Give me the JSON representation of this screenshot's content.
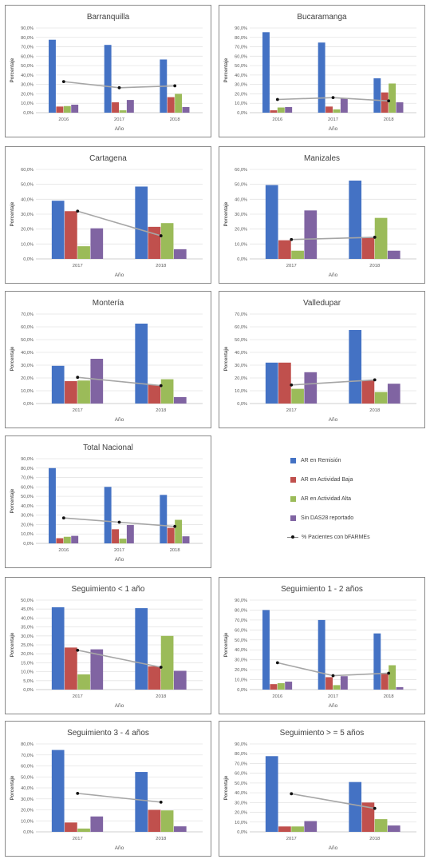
{
  "colors": {
    "remision": "#4472c4",
    "baja": "#c0504d",
    "alta": "#9bbb59",
    "sin": "#8064a2",
    "line": "#a6a6a6",
    "marker": "#111111"
  },
  "legend": {
    "items": [
      {
        "label": "AR en Remisión",
        "key": "remision",
        "type": "bar"
      },
      {
        "label": "AR en Actividad Baja",
        "key": "baja",
        "type": "bar"
      },
      {
        "label": "AR en Actividad Alta",
        "key": "alta",
        "type": "bar"
      },
      {
        "label": "Sin DAS28 reportado",
        "key": "sin",
        "type": "bar"
      },
      {
        "label": "% Pacientes con bFARMEs",
        "key": "line",
        "type": "line"
      }
    ]
  },
  "chart_data": [
    {
      "type": "bar",
      "title": "Barranquilla",
      "xlabel": "Año",
      "ylabel": "Porcentaje",
      "ylim": [
        0,
        90
      ],
      "yticks": [
        "0,0%",
        "10,0%",
        "20,0%",
        "30,0%",
        "40,0%",
        "50,0%",
        "60,0%",
        "70,0%",
        "80,0%",
        "90,0%"
      ],
      "categories": [
        "2016",
        "2017",
        "2018"
      ],
      "series": [
        {
          "name": "AR en Remisión",
          "key": "remision",
          "values": [
            77.5,
            72.0,
            56.5
          ]
        },
        {
          "name": "AR en Actividad Baja",
          "key": "baja",
          "values": [
            6.5,
            11.0,
            16.5
          ]
        },
        {
          "name": "AR en Actividad Alta",
          "key": "alta",
          "values": [
            7.0,
            2.5,
            20.0
          ]
        },
        {
          "name": "Sin DAS28 reportado",
          "key": "sin",
          "values": [
            8.5,
            13.5,
            6.0
          ]
        }
      ],
      "line": {
        "name": "% Pacientes con bFARMEs",
        "values": [
          33.0,
          26.5,
          28.5
        ]
      }
    },
    {
      "type": "bar",
      "title": "Bucaramanga",
      "xlabel": "Año",
      "ylabel": "Porcentaje",
      "ylim": [
        0,
        90
      ],
      "yticks": [
        "0,0%",
        "10,0%",
        "20,0%",
        "30,0%",
        "40,0%",
        "50,0%",
        "60,0%",
        "70,0%",
        "80,0%",
        "90,0%"
      ],
      "categories": [
        "2016",
        "2017",
        "2018"
      ],
      "series": [
        {
          "name": "AR en Remisión",
          "key": "remision",
          "values": [
            85.5,
            74.5,
            36.5
          ]
        },
        {
          "name": "AR en Actividad Baja",
          "key": "baja",
          "values": [
            2.5,
            6.5,
            21.5
          ]
        },
        {
          "name": "AR en Actividad Alta",
          "key": "alta",
          "values": [
            5.5,
            3.5,
            31.0
          ]
        },
        {
          "name": "Sin DAS28 reportado",
          "key": "sin",
          "values": [
            6.0,
            15.5,
            11.0
          ]
        }
      ],
      "line": {
        "name": "% Pacientes con bFARMEs",
        "values": [
          14.0,
          16.0,
          12.5
        ]
      }
    },
    {
      "type": "bar",
      "title": "Cartagena",
      "xlabel": "Año",
      "ylabel": "Porcentaje",
      "ylim": [
        0,
        60
      ],
      "yticks": [
        "0,0%",
        "10,0%",
        "20,0%",
        "30,0%",
        "40,0%",
        "50,0%",
        "60,0%"
      ],
      "categories": [
        "2017",
        "2018"
      ],
      "series": [
        {
          "name": "AR en Remisión",
          "key": "remision",
          "values": [
            39.0,
            48.5
          ]
        },
        {
          "name": "AR en Actividad Baja",
          "key": "baja",
          "values": [
            32.0,
            21.5
          ]
        },
        {
          "name": "AR en Actividad Alta",
          "key": "alta",
          "values": [
            8.5,
            24.0
          ]
        },
        {
          "name": "Sin DAS28 reportado",
          "key": "sin",
          "values": [
            20.5,
            6.5
          ]
        }
      ],
      "line": {
        "name": "% Pacientes con bFARMEs",
        "values": [
          32.0,
          15.5
        ]
      }
    },
    {
      "type": "bar",
      "title": "Manizales",
      "xlabel": "Año",
      "ylabel": "Porcentaje",
      "ylim": [
        0,
        60
      ],
      "yticks": [
        "0,0%",
        "10,0%",
        "20,0%",
        "30,0%",
        "40,0%",
        "50,0%",
        "60,0%"
      ],
      "categories": [
        "2017",
        "2018"
      ],
      "series": [
        {
          "name": "AR en Remisión",
          "key": "remision",
          "values": [
            49.5,
            52.5
          ]
        },
        {
          "name": "AR en Actividad Baja",
          "key": "baja",
          "values": [
            12.5,
            14.5
          ]
        },
        {
          "name": "AR en Actividad Alta",
          "key": "alta",
          "values": [
            5.5,
            27.5
          ]
        },
        {
          "name": "Sin DAS28 reportado",
          "key": "sin",
          "values": [
            32.5,
            5.5
          ]
        }
      ],
      "line": {
        "name": "% Pacientes con bFARMEs",
        "values": [
          13.0,
          14.5
        ]
      }
    },
    {
      "type": "bar",
      "title": "Montería",
      "xlabel": "Año",
      "ylabel": "Porcentaje",
      "ylim": [
        0,
        70
      ],
      "yticks": [
        "0,0%",
        "10,0%",
        "20,0%",
        "30,0%",
        "40,0%",
        "50,0%",
        "60,0%",
        "70,0%"
      ],
      "categories": [
        "2017",
        "2018"
      ],
      "series": [
        {
          "name": "AR en Remisión",
          "key": "remision",
          "values": [
            29.5,
            62.5
          ]
        },
        {
          "name": "AR en Actividad Baja",
          "key": "baja",
          "values": [
            17.5,
            14.5
          ]
        },
        {
          "name": "AR en Actividad Alta",
          "key": "alta",
          "values": [
            18.0,
            19.0
          ]
        },
        {
          "name": "Sin DAS28 reportado",
          "key": "sin",
          "values": [
            35.0,
            5.0
          ]
        }
      ],
      "line": {
        "name": "% Pacientes con bFARMEs",
        "values": [
          20.5,
          14.0
        ]
      }
    },
    {
      "type": "bar",
      "title": "Valledupar",
      "xlabel": "Año",
      "ylabel": "Porcentaje",
      "ylim": [
        0,
        70
      ],
      "yticks": [
        "0,0%",
        "10,0%",
        "20,0%",
        "30,0%",
        "40,0%",
        "50,0%",
        "60,0%",
        "70,0%"
      ],
      "categories": [
        "2017",
        "2018"
      ],
      "series": [
        {
          "name": "AR en Remisión",
          "key": "remision",
          "values": [
            32.0,
            57.5
          ]
        },
        {
          "name": "AR en Actividad Baja",
          "key": "baja",
          "values": [
            32.0,
            18.0
          ]
        },
        {
          "name": "AR en Actividad Alta",
          "key": "alta",
          "values": [
            11.5,
            9.0
          ]
        },
        {
          "name": "Sin DAS28 reportado",
          "key": "sin",
          "values": [
            24.5,
            15.5
          ]
        }
      ],
      "line": {
        "name": "% Pacientes con bFARMEs",
        "values": [
          14.5,
          18.5
        ]
      }
    },
    {
      "type": "bar",
      "title": "Total Nacional",
      "xlabel": "Año",
      "ylabel": "Porcentaje",
      "ylim": [
        0,
        90
      ],
      "yticks": [
        "0,0%",
        "10,0%",
        "20,0%",
        "30,0%",
        "40,0%",
        "50,0%",
        "60,0%",
        "70,0%",
        "80,0%",
        "90,0%"
      ],
      "categories": [
        "2016",
        "2017",
        "2018"
      ],
      "series": [
        {
          "name": "AR en Remisión",
          "key": "remision",
          "values": [
            80.0,
            60.0,
            51.5
          ]
        },
        {
          "name": "AR en Actividad Baja",
          "key": "baja",
          "values": [
            5.5,
            15.0,
            16.5
          ]
        },
        {
          "name": "AR en Actividad Alta",
          "key": "alta",
          "values": [
            7.0,
            5.0,
            25.0
          ]
        },
        {
          "name": "Sin DAS28 reportado",
          "key": "sin",
          "values": [
            8.0,
            19.5,
            7.5
          ]
        }
      ],
      "line": {
        "name": "% Pacientes con bFARMEs",
        "values": [
          27.0,
          22.5,
          18.0
        ]
      }
    },
    {
      "type": "bar",
      "title": "Seguimiento < 1 año",
      "xlabel": "Año",
      "ylabel": "Porcentaje",
      "ylim": [
        0,
        50
      ],
      "yticks": [
        "0,0%",
        "5,0%",
        "10,0%",
        "15,0%",
        "20,0%",
        "25,0%",
        "30,0%",
        "35,0%",
        "40,0%",
        "45,0%",
        "50,0%"
      ],
      "categories": [
        "2017",
        "2018"
      ],
      "series": [
        {
          "name": "AR en Remisión",
          "key": "remision",
          "values": [
            46.0,
            45.5
          ]
        },
        {
          "name": "AR en Actividad Baja",
          "key": "baja",
          "values": [
            23.5,
            13.0
          ]
        },
        {
          "name": "AR en Actividad Alta",
          "key": "alta",
          "values": [
            8.5,
            30.0
          ]
        },
        {
          "name": "Sin DAS28 reportado",
          "key": "sin",
          "values": [
            22.5,
            10.5
          ]
        }
      ],
      "line": {
        "name": "% Pacientes con bFARMEs",
        "values": [
          22.0,
          12.5
        ]
      }
    },
    {
      "type": "bar",
      "title": "Seguimiento 1 - 2 años",
      "xlabel": "Año",
      "ylabel": "Porcentaje",
      "ylim": [
        0,
        90
      ],
      "yticks": [
        "0,0%",
        "10,0%",
        "20,0%",
        "30,0%",
        "40,0%",
        "50,0%",
        "60,0%",
        "70,0%",
        "80,0%",
        "90,0%"
      ],
      "categories": [
        "2016",
        "2017",
        "2018"
      ],
      "series": [
        {
          "name": "AR en Remisión",
          "key": "remision",
          "values": [
            80.0,
            70.0,
            56.5
          ]
        },
        {
          "name": "AR en Actividad Baja",
          "key": "baja",
          "values": [
            5.5,
            12.5,
            16.0
          ]
        },
        {
          "name": "AR en Actividad Alta",
          "key": "alta",
          "values": [
            6.5,
            4.5,
            24.5
          ]
        },
        {
          "name": "Sin DAS28 reportado",
          "key": "sin",
          "values": [
            8.0,
            13.5,
            2.5
          ]
        }
      ],
      "line": {
        "name": "% Pacientes con bFARMEs",
        "values": [
          27.0,
          14.0,
          16.5
        ]
      }
    },
    {
      "type": "bar",
      "title": "Seguimiento 3 - 4 años",
      "xlabel": "Año",
      "ylabel": "Porcentaje",
      "ylim": [
        0,
        80
      ],
      "yticks": [
        "0,0%",
        "10,0%",
        "20,0%",
        "30,0%",
        "40,0%",
        "50,0%",
        "60,0%",
        "70,0%",
        "80,0%"
      ],
      "categories": [
        "2017",
        "2018"
      ],
      "series": [
        {
          "name": "AR en Remisión",
          "key": "remision",
          "values": [
            74.5,
            54.5
          ]
        },
        {
          "name": "AR en Actividad Baja",
          "key": "baja",
          "values": [
            8.5,
            20.0
          ]
        },
        {
          "name": "AR en Actividad Alta",
          "key": "alta",
          "values": [
            3.0,
            19.5
          ]
        },
        {
          "name": "Sin DAS28 reportado",
          "key": "sin",
          "values": [
            14.0,
            5.0
          ]
        }
      ],
      "line": {
        "name": "% Pacientes con bFARMEs",
        "values": [
          35.0,
          27.0
        ]
      }
    },
    {
      "type": "bar",
      "title": "Seguimiento > = 5 años",
      "xlabel": "Año",
      "ylabel": "Porcentaje",
      "ylim": [
        0,
        90
      ],
      "yticks": [
        "0,0%",
        "10,0%",
        "20,0%",
        "30,0%",
        "40,0%",
        "50,0%",
        "60,0%",
        "70,0%",
        "80,0%",
        "90,0%"
      ],
      "categories": [
        "2017",
        "2018"
      ],
      "series": [
        {
          "name": "AR en Remisión",
          "key": "remision",
          "values": [
            77.5,
            51.0
          ]
        },
        {
          "name": "AR en Actividad Baja",
          "key": "baja",
          "values": [
            5.5,
            30.0
          ]
        },
        {
          "name": "AR en Actividad Alta",
          "key": "alta",
          "values": [
            5.5,
            13.0
          ]
        },
        {
          "name": "Sin DAS28 reportado",
          "key": "sin",
          "values": [
            11.0,
            6.5
          ]
        }
      ],
      "line": {
        "name": "% Pacientes con bFARMEs",
        "values": [
          39.0,
          24.0
        ]
      }
    }
  ]
}
